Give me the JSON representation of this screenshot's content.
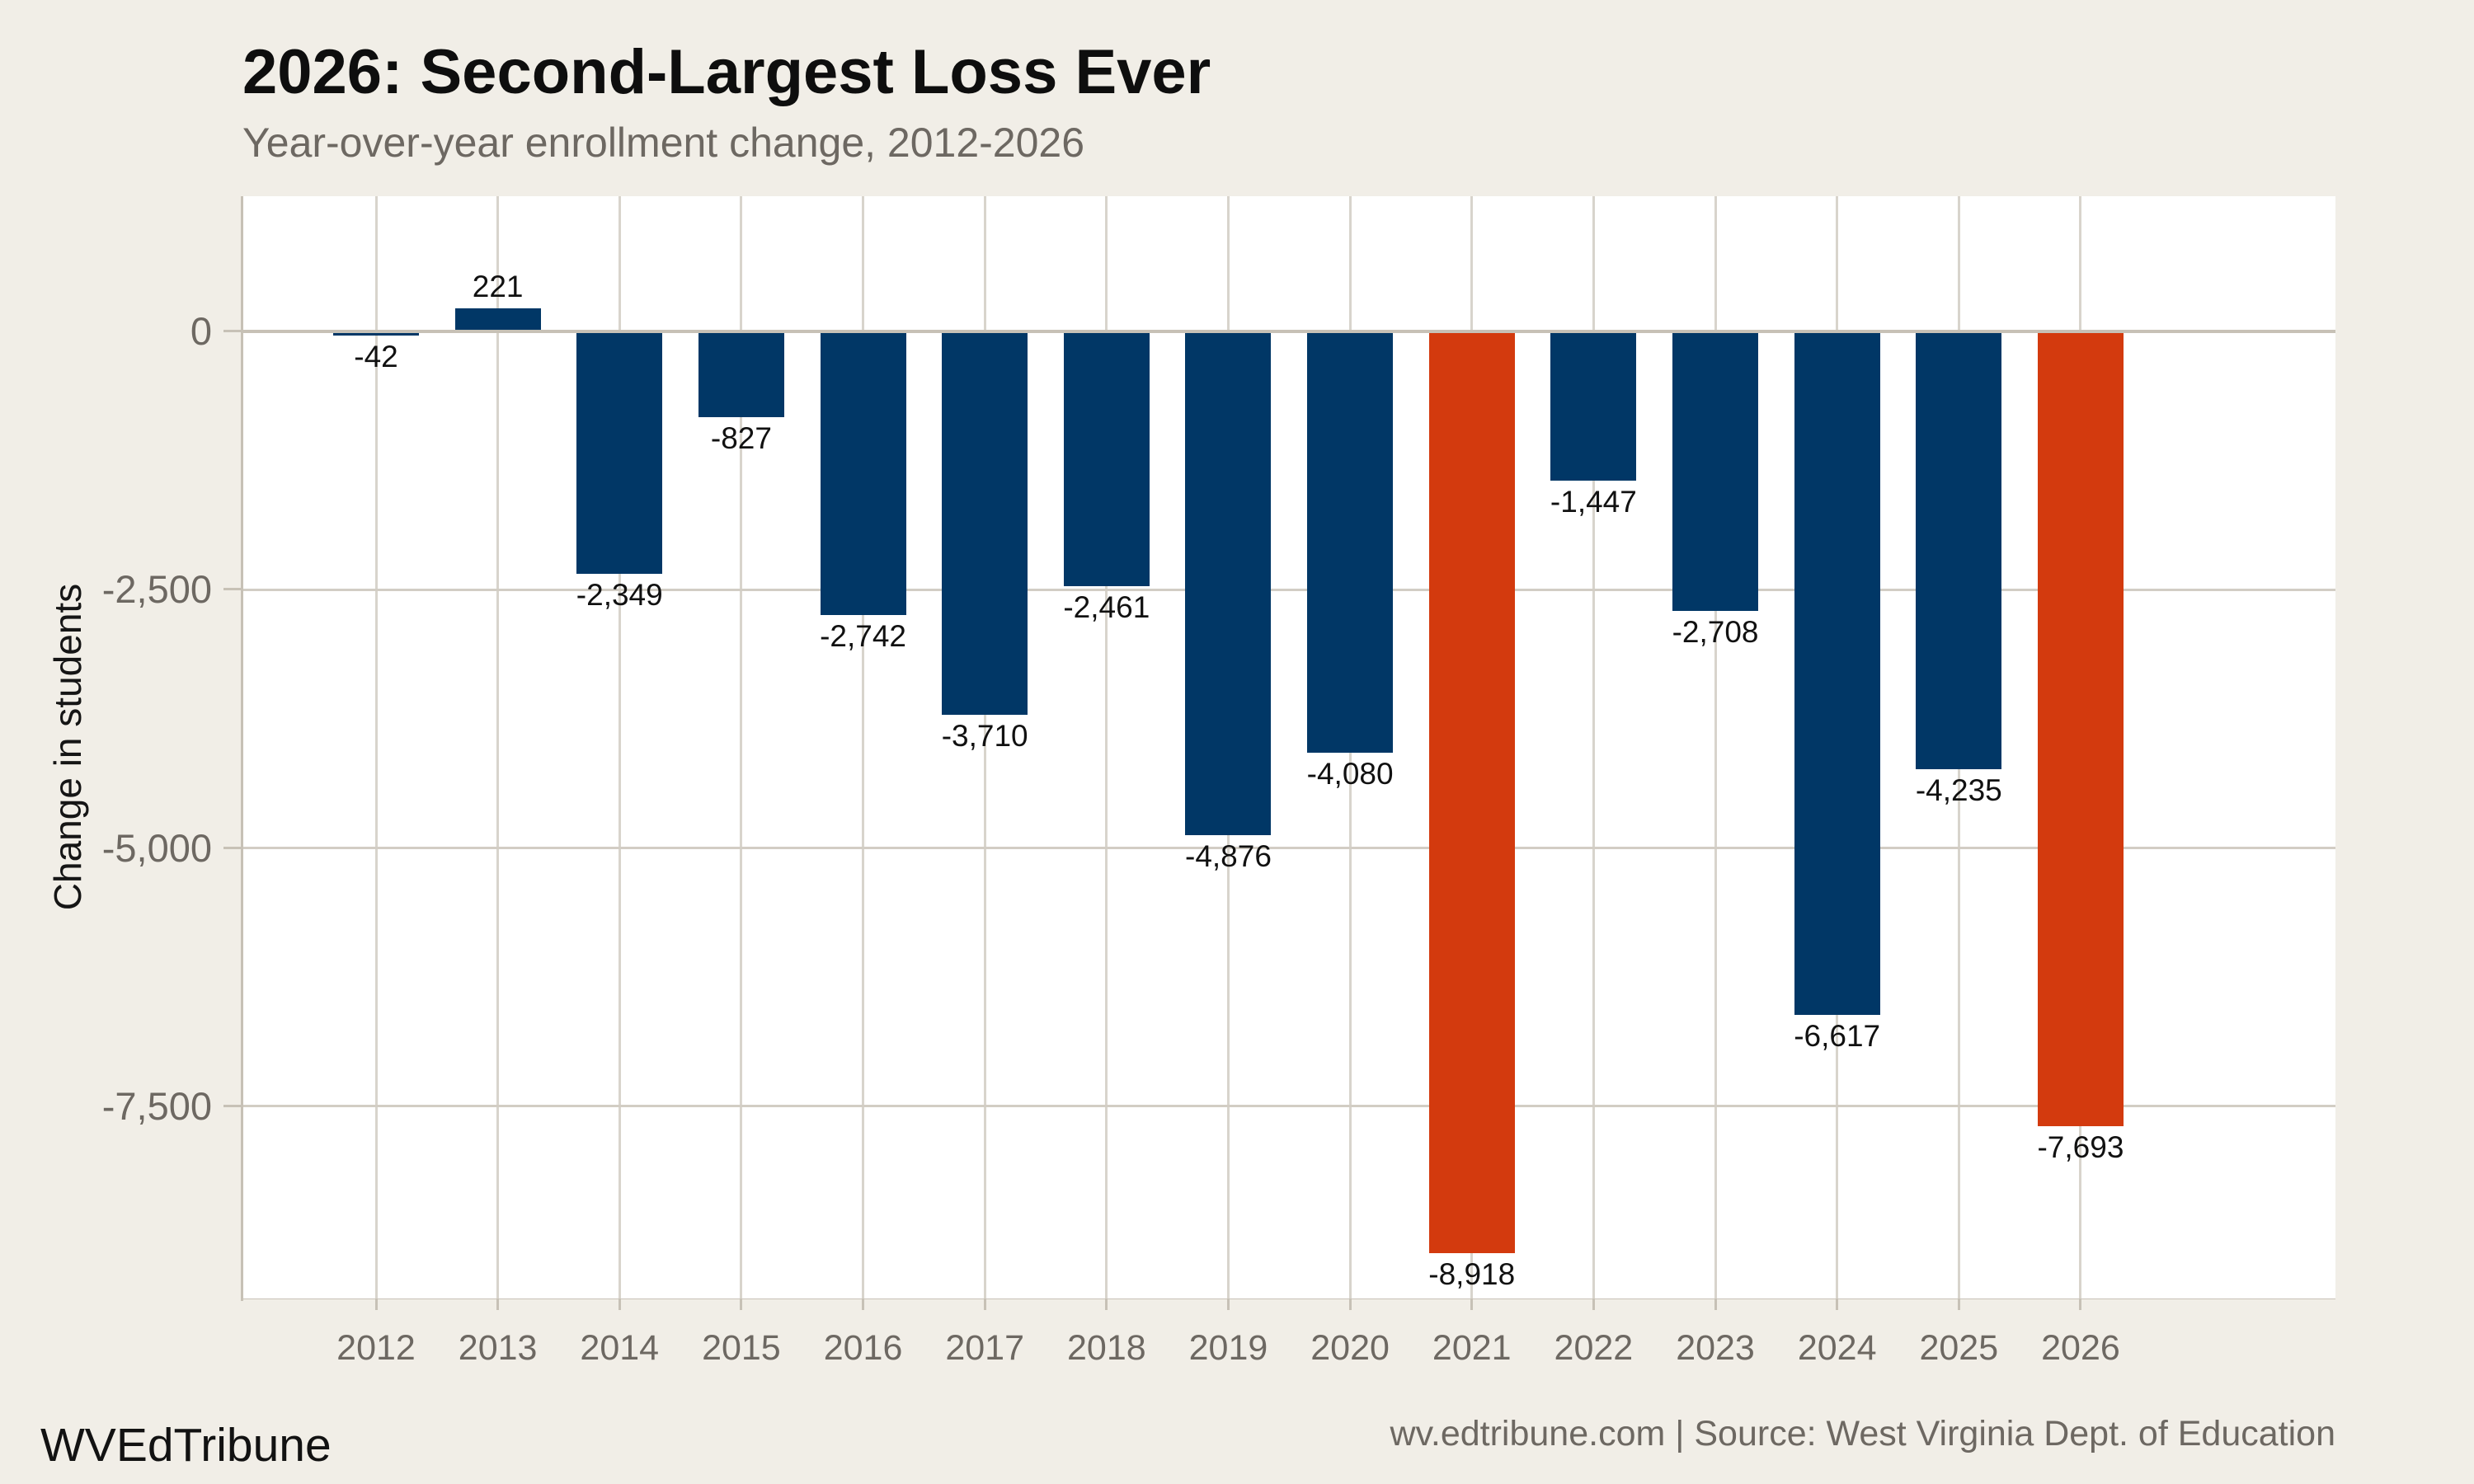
{
  "page": {
    "footer_left": "WVEdTribune",
    "footer_right": "wv.edtribune.com | Source: West Virginia Dept. of Education"
  },
  "colors": {
    "background": "#f1eee7",
    "plot_background": "#ffffff",
    "bar_default": "#013766",
    "bar_highlight": "#d33a0e",
    "gridline_horizontal": "#d2cdc4",
    "gridline_vertical": "#d8d4cc",
    "axis_line": "#c7c1b6",
    "text_gray": "#6d6862",
    "text_dark": "#111111"
  },
  "chart_data": {
    "type": "bar",
    "title": "2026: Second-Largest Loss Ever",
    "subtitle": "Year-over-year enrollment change, 2012-2026",
    "xlabel": "",
    "ylabel": "Change in students",
    "categories": [
      "2012",
      "2013",
      "2014",
      "2015",
      "2016",
      "2017",
      "2018",
      "2019",
      "2020",
      "2021",
      "2022",
      "2023",
      "2024",
      "2025",
      "2026"
    ],
    "values": [
      -42,
      221,
      -2349,
      -827,
      -2742,
      -3710,
      -2461,
      -4876,
      -4080,
      -8918,
      -1447,
      -2708,
      -6617,
      -4235,
      -7693
    ],
    "data_labels": [
      "-42",
      "221",
      "-2,349",
      "-827",
      "-2,742",
      "-3,710",
      "-2,461",
      "-4,876",
      "-4,080",
      "-8,918",
      "-1,447",
      "-2,708",
      "-6,617",
      "-4,235",
      "-7,693"
    ],
    "highlighted_categories": [
      "2021",
      "2026"
    ],
    "y_ticks": [
      {
        "value": 0,
        "label": "0"
      },
      {
        "value": -2500,
        "label": "-2,500"
      },
      {
        "value": -5000,
        "label": "-5,000"
      },
      {
        "value": -7500,
        "label": "-7,500"
      }
    ],
    "ylim": [
      1310,
      -9360
    ],
    "grid": true,
    "legend": false
  }
}
